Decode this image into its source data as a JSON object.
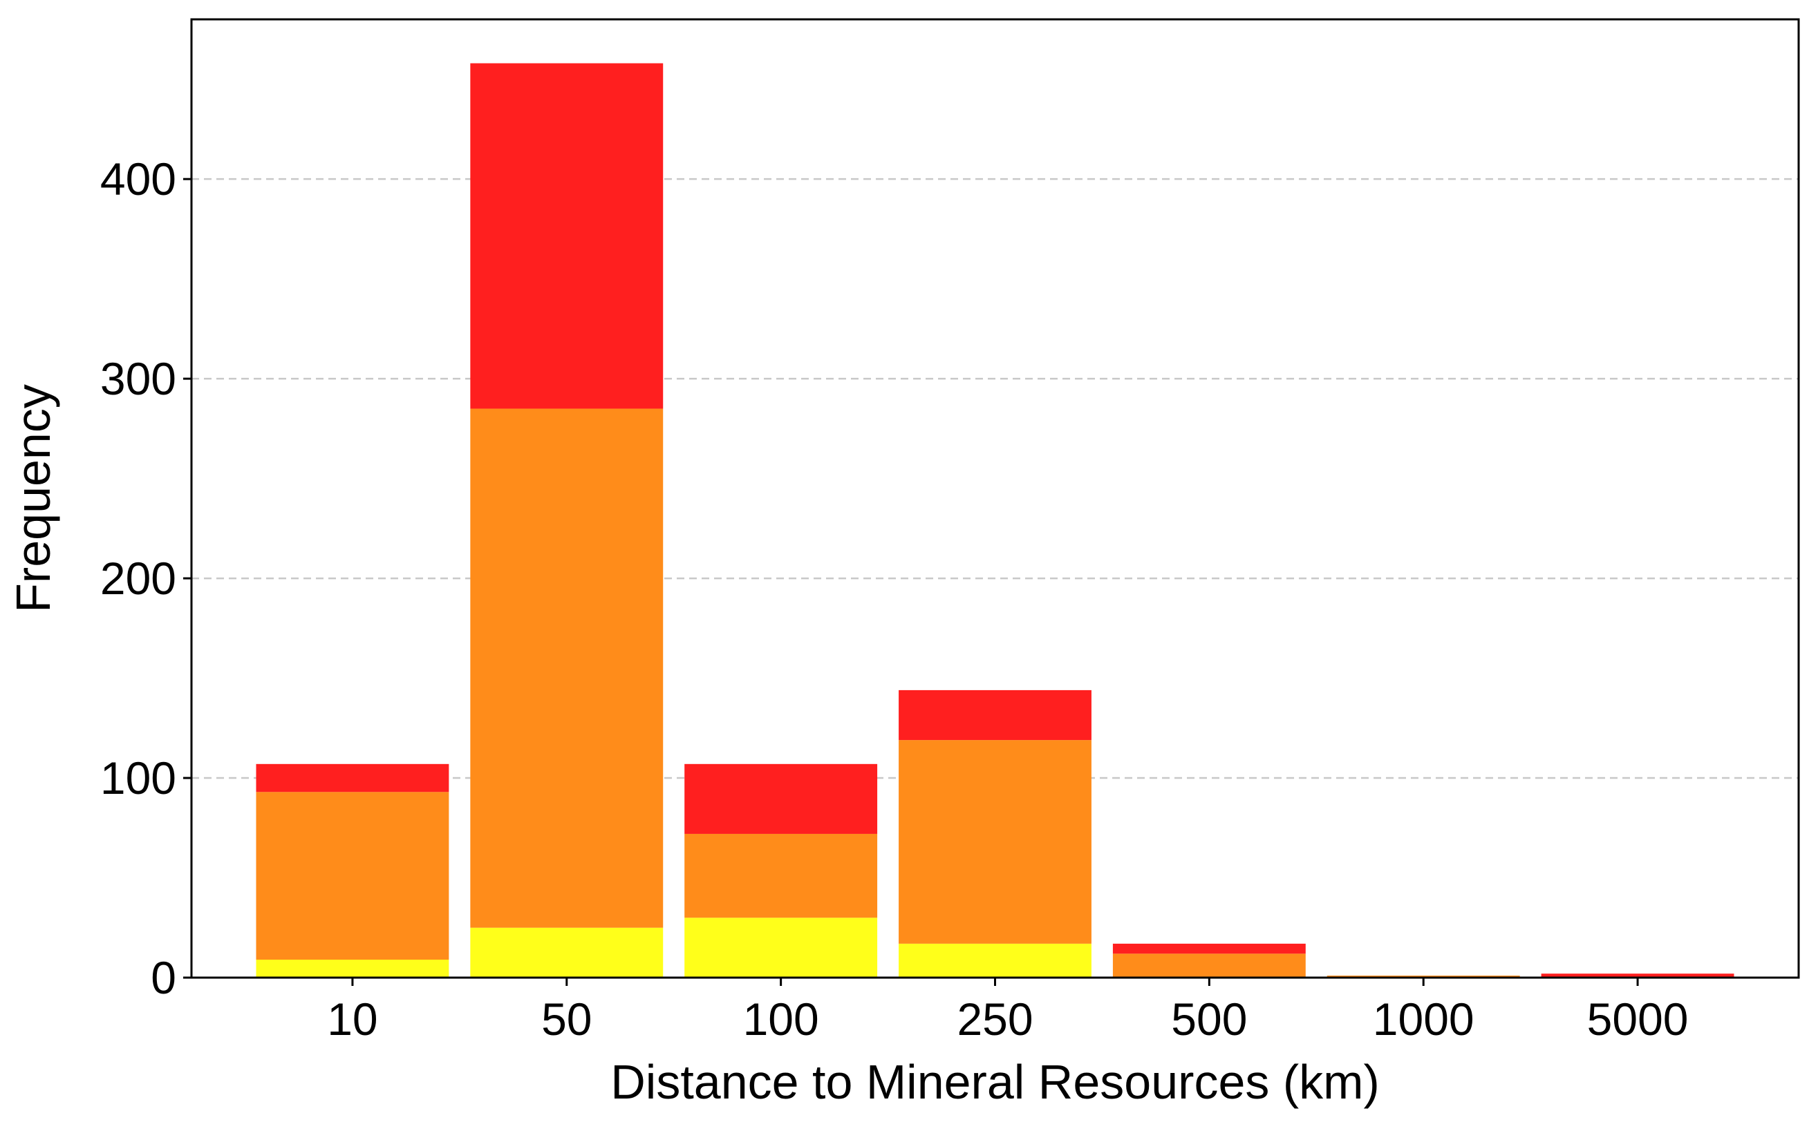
{
  "chart_data": {
    "type": "bar",
    "stacked": true,
    "title": "",
    "xlabel": "Distance to Mineral Resources (km)",
    "ylabel": "Frequency",
    "categories": [
      "10",
      "50",
      "100",
      "250",
      "500",
      "1000",
      "5000"
    ],
    "ylim": [
      0,
      480
    ],
    "yticks": [
      0,
      100,
      200,
      300,
      400
    ],
    "grid": "y-dashed",
    "legend": "none",
    "series": [
      {
        "color": "#FFFF1A",
        "values": [
          9,
          25,
          30,
          17,
          0,
          0,
          0
        ]
      },
      {
        "color": "#FF8C1A",
        "values": [
          84,
          260,
          42,
          102,
          12,
          1,
          0
        ]
      },
      {
        "color": "#FF1F1F",
        "values": [
          14,
          173,
          35,
          25,
          5,
          0,
          2
        ]
      }
    ]
  }
}
